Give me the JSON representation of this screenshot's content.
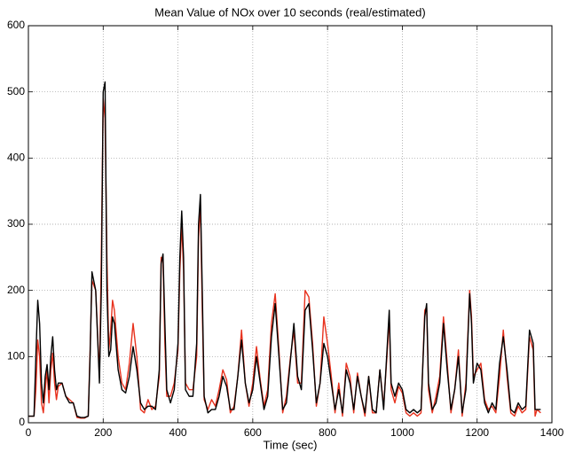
{
  "chart_data": {
    "type": "line",
    "title": "Mean Value of NOx over 10 seconds (real/estimated)",
    "x_label": "Time (sec)",
    "xlim": [
      0,
      1400
    ],
    "xticks": [
      0,
      200,
      400,
      600,
      800,
      1000,
      1200,
      1400
    ],
    "ylim": [
      0,
      600
    ],
    "yticks": [
      0,
      100,
      200,
      300,
      400,
      500,
      600
    ],
    "grid": true,
    "x": [
      0,
      15,
      20,
      25,
      30,
      35,
      40,
      45,
      50,
      55,
      60,
      65,
      70,
      75,
      80,
      90,
      100,
      110,
      120,
      130,
      140,
      150,
      160,
      165,
      170,
      180,
      190,
      195,
      200,
      205,
      210,
      215,
      220,
      225,
      230,
      240,
      250,
      260,
      270,
      280,
      290,
      300,
      310,
      320,
      330,
      340,
      350,
      355,
      360,
      365,
      370,
      380,
      390,
      400,
      405,
      410,
      415,
      420,
      430,
      440,
      450,
      455,
      460,
      465,
      470,
      480,
      490,
      500,
      510,
      520,
      530,
      540,
      550,
      560,
      570,
      580,
      590,
      600,
      610,
      620,
      630,
      640,
      650,
      660,
      670,
      680,
      690,
      700,
      710,
      720,
      730,
      740,
      750,
      760,
      770,
      780,
      790,
      800,
      810,
      820,
      830,
      840,
      850,
      860,
      870,
      880,
      890,
      900,
      910,
      920,
      930,
      940,
      950,
      960,
      965,
      970,
      980,
      990,
      1000,
      1010,
      1020,
      1030,
      1040,
      1050,
      1060,
      1065,
      1070,
      1080,
      1090,
      1100,
      1110,
      1120,
      1130,
      1140,
      1150,
      1160,
      1170,
      1180,
      1185,
      1190,
      1200,
      1210,
      1220,
      1230,
      1240,
      1250,
      1260,
      1270,
      1280,
      1290,
      1300,
      1310,
      1320,
      1330,
      1340,
      1350,
      1355,
      1360,
      1370
    ],
    "series": [
      {
        "color": "#e8321e",
        "values": [
          10,
          10,
          50,
          125,
          100,
          30,
          15,
          50,
          80,
          30,
          80,
          105,
          60,
          35,
          55,
          60,
          40,
          35,
          30,
          8,
          7,
          7,
          10,
          110,
          215,
          200,
          70,
          250,
          490,
          460,
          250,
          110,
          140,
          185,
          170,
          100,
          60,
          50,
          90,
          150,
          100,
          20,
          15,
          35,
          20,
          25,
          70,
          250,
          245,
          120,
          40,
          40,
          60,
          110,
          230,
          300,
          230,
          60,
          50,
          50,
          100,
          280,
          330,
          170,
          35,
          20,
          35,
          25,
          50,
          80,
          65,
          15,
          25,
          70,
          140,
          60,
          25,
          60,
          115,
          65,
          25,
          50,
          150,
          195,
          110,
          15,
          40,
          95,
          140,
          60,
          60,
          200,
          190,
          120,
          25,
          60,
          160,
          120,
          70,
          15,
          60,
          10,
          90,
          70,
          15,
          75,
          40,
          10,
          70,
          15,
          15,
          80,
          25,
          110,
          160,
          50,
          30,
          55,
          45,
          15,
          10,
          15,
          10,
          15,
          170,
          175,
          50,
          15,
          40,
          70,
          160,
          90,
          15,
          50,
          110,
          10,
          60,
          200,
          160,
          70,
          80,
          90,
          35,
          20,
          25,
          15,
          70,
          140,
          70,
          15,
          10,
          25,
          15,
          20,
          130,
          110,
          10,
          20,
          15
        ]
      },
      {
        "color": "#000000",
        "values": [
          10,
          10,
          100,
          185,
          150,
          60,
          30,
          70,
          88,
          50,
          100,
          130,
          80,
          50,
          60,
          60,
          40,
          30,
          30,
          10,
          8,
          8,
          10,
          100,
          228,
          200,
          60,
          200,
          500,
          515,
          200,
          100,
          110,
          160,
          150,
          80,
          50,
          45,
          70,
          115,
          80,
          30,
          20,
          25,
          25,
          20,
          80,
          240,
          255,
          150,
          50,
          30,
          50,
          120,
          250,
          320,
          250,
          50,
          40,
          40,
          120,
          300,
          345,
          200,
          40,
          15,
          20,
          20,
          40,
          70,
          55,
          20,
          20,
          70,
          125,
          60,
          30,
          50,
          100,
          60,
          20,
          40,
          130,
          180,
          100,
          20,
          30,
          90,
          150,
          70,
          50,
          170,
          180,
          110,
          30,
          60,
          120,
          100,
          60,
          20,
          50,
          15,
          80,
          60,
          20,
          70,
          40,
          15,
          70,
          20,
          15,
          80,
          20,
          120,
          170,
          60,
          40,
          60,
          50,
          20,
          15,
          20,
          15,
          20,
          160,
          180,
          60,
          20,
          30,
          60,
          150,
          80,
          20,
          50,
          100,
          15,
          50,
          195,
          150,
          60,
          90,
          80,
          30,
          15,
          30,
          20,
          90,
          130,
          80,
          20,
          15,
          30,
          20,
          25,
          140,
          120,
          20,
          20,
          20
        ]
      }
    ]
  }
}
